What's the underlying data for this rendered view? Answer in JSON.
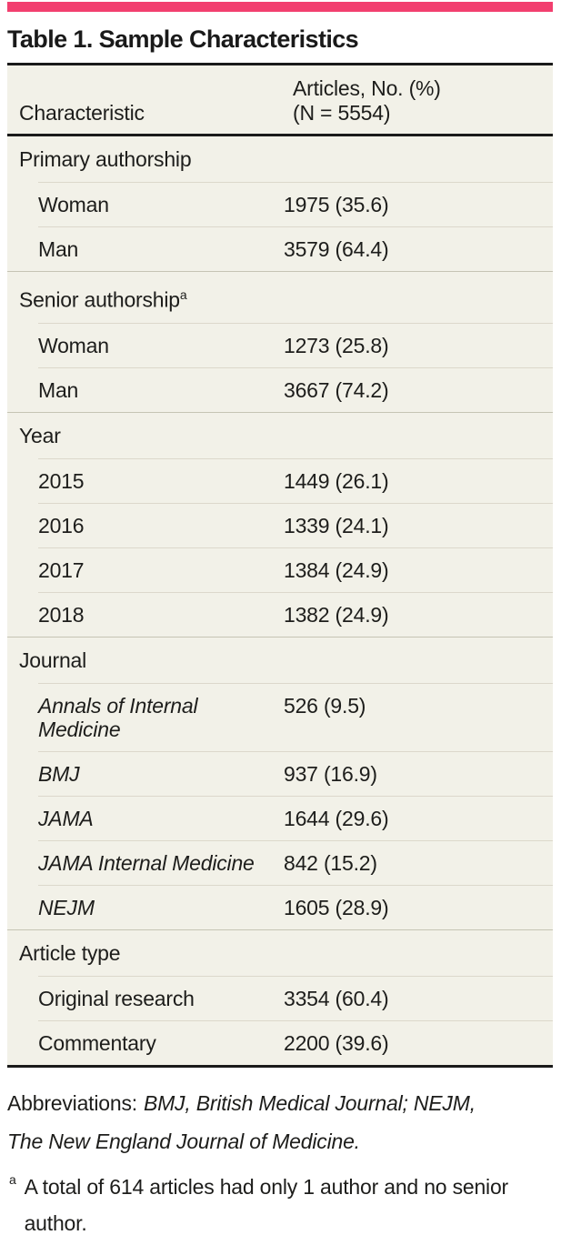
{
  "accent_color": "#f23f6f",
  "title": "Table 1. Sample Characteristics",
  "table": {
    "col1_header": "Characteristic",
    "col2_header_line1": "Articles, No. (%)",
    "col2_header_line2": "(N = 5554)",
    "sections": [
      {
        "label": "Primary authorship",
        "rows": [
          {
            "label": "Woman",
            "value": "1975 (35.6)"
          },
          {
            "label": "Man",
            "value": "3579 (64.4)"
          }
        ]
      },
      {
        "label": "Senior authorship",
        "sup": "a",
        "rows": [
          {
            "label": "Woman",
            "value": "1273 (25.8)"
          },
          {
            "label": "Man",
            "value": "3667 (74.2)"
          }
        ]
      },
      {
        "label": "Year",
        "rows": [
          {
            "label": "2015",
            "value": "1449 (26.1)"
          },
          {
            "label": "2016",
            "value": "1339 (24.1)"
          },
          {
            "label": "2017",
            "value": "1384 (24.9)"
          },
          {
            "label": "2018",
            "value": "1382 (24.9)"
          }
        ]
      },
      {
        "label": "Journal",
        "italic_rows": true,
        "rows": [
          {
            "label": "Annals of Internal Medicine",
            "value": "526 (9.5)"
          },
          {
            "label": "BMJ",
            "value": "937 (16.9)"
          },
          {
            "label": "JAMA",
            "value": "1644 (29.6)"
          },
          {
            "label": "JAMA Internal Medicine",
            "value": "842 (15.2)"
          },
          {
            "label": "NEJM",
            "value": "1605 (28.9)"
          }
        ]
      },
      {
        "label": "Article type",
        "rows": [
          {
            "label": "Original research",
            "value": "3354 (60.4)"
          },
          {
            "label": "Commentary",
            "value": "2200 (39.6)"
          }
        ]
      }
    ]
  },
  "footnotes": {
    "abbreviations_label": "Abbreviations:",
    "abbreviations_text": "BMJ, British Medical Journal; NEJM, The New England Journal of Medicine.",
    "footnote_a_marker": "a",
    "footnote_a_text": "A total of 614 articles had only 1 author and no senior author."
  }
}
